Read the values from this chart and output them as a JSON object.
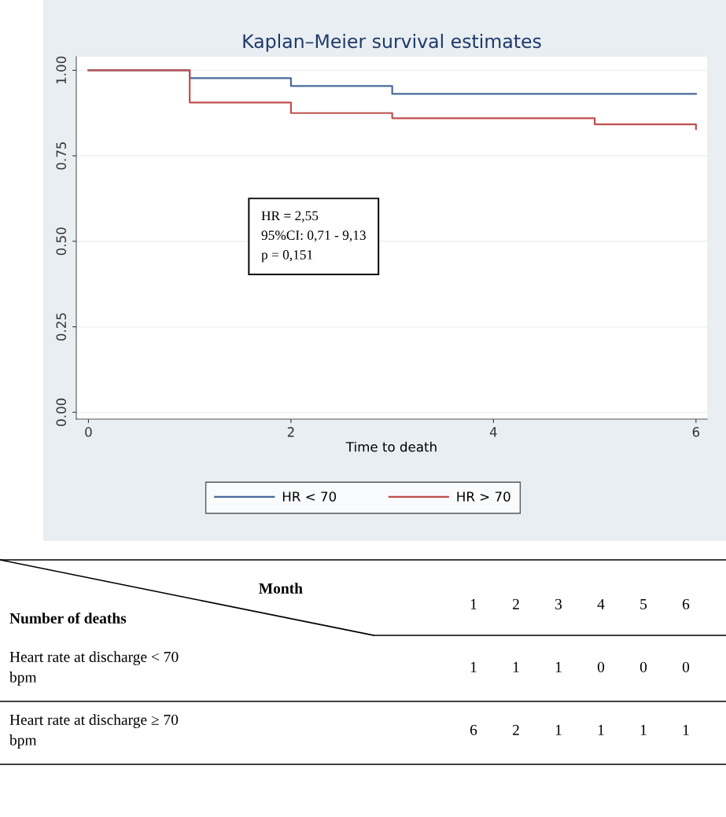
{
  "chart_data": {
    "type": "step",
    "title": "Kaplan–Meier survival estimates",
    "xlabel": "Time to death",
    "series": [
      {
        "name": "HR < 70",
        "color": "#4a6a9a",
        "x": [
          0,
          1,
          2,
          3,
          6
        ],
        "values": [
          1.0,
          0.977,
          0.954,
          0.931,
          0.931
        ]
      },
      {
        "name": "HR > 70",
        "color": "#c0504d",
        "x": [
          0,
          1,
          2,
          3,
          5,
          6,
          6
        ],
        "values": [
          1.0,
          0.906,
          0.875,
          0.86,
          0.842,
          0.842,
          0.828
        ]
      }
    ],
    "xlim": [
      -0.12,
      6.11
    ],
    "xticks": [
      0,
      2,
      4,
      6
    ],
    "ylim": [
      -0.02,
      1.04
    ],
    "yticks": [
      {
        "value": 0,
        "label": "0.00"
      },
      {
        "value": 0.25,
        "label": "0.25"
      },
      {
        "value": 0.5,
        "label": "0.50"
      },
      {
        "value": 0.75,
        "label": "0.75"
      },
      {
        "value": 1,
        "label": "1.00"
      }
    ],
    "grid": "y",
    "legend": "bottom",
    "annotations": [
      "HR = 2,55\n95%CI: 0,71 - 9,13\np = 0,151",
      "Month",
      "Number of deaths",
      "1",
      "2",
      "3",
      "4",
      "5",
      "6",
      "Heart rate at discharge < 70\nbpm",
      "1",
      "1",
      "1",
      "0",
      "0",
      "0",
      "Heart rate at discharge ≥ 70\nbpm",
      "6",
      "2",
      "1",
      "1",
      "1",
      "1"
    ]
  }
}
